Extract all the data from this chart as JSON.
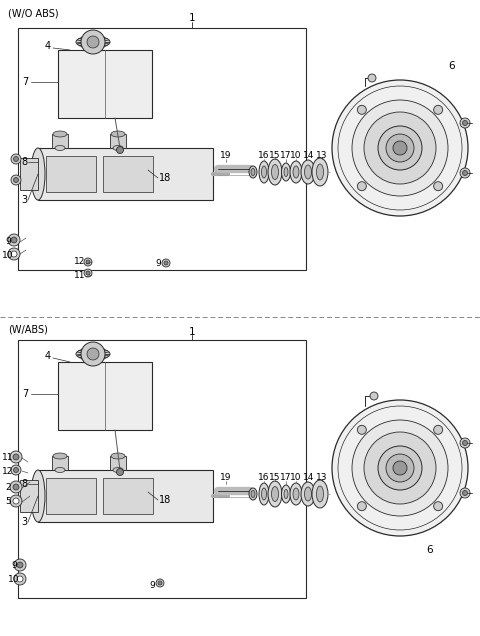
{
  "bg_color": "#ffffff",
  "line_color": "#2a2a2a",
  "fig_width": 4.8,
  "fig_height": 6.36,
  "dpi": 100,
  "title_wo_abs": "(W/O ABS)",
  "title_w_abs": "(W/ABS)"
}
